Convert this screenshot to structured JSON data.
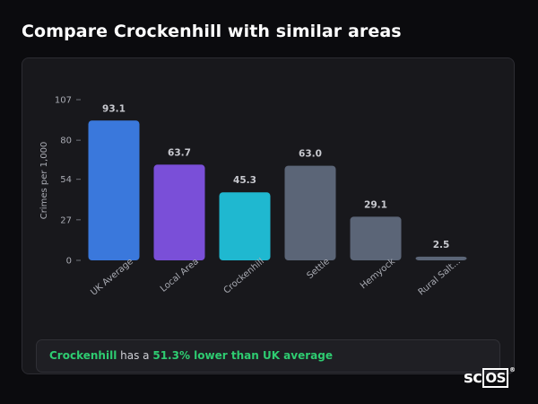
{
  "header": {
    "title": "Compare Crockenhill with similar areas"
  },
  "chart_data": {
    "type": "bar",
    "ylabel": "Crimes per 1,000",
    "xlabel": "",
    "ylim": [
      0,
      107
    ],
    "yticks": [
      0,
      27,
      54,
      80,
      107
    ],
    "grid": false,
    "categories": [
      "UK Average",
      "Local Area",
      "Crockenhill",
      "Settle",
      "Hemyock",
      "Rural Salt..."
    ],
    "values": [
      93.1,
      63.7,
      45.3,
      63.0,
      29.1,
      2.5
    ],
    "value_labels": [
      "93.1",
      "63.7",
      "45.3",
      "63.0",
      "29.1",
      "2.5"
    ],
    "colors": [
      "#3a78dc",
      "#7a4fd8",
      "#1fb8d0",
      "#5b6577",
      "#5b6577",
      "#5b6577"
    ],
    "tick_color": "#a9abb3",
    "label_color": "#c8c9cf"
  },
  "callout": {
    "area": "Crockenhill",
    "middle": "has a",
    "comparison": "51.3% lower than UK average"
  },
  "logo": {
    "text_main": "sc",
    "text_boxed": "OS",
    "mark": "®"
  }
}
